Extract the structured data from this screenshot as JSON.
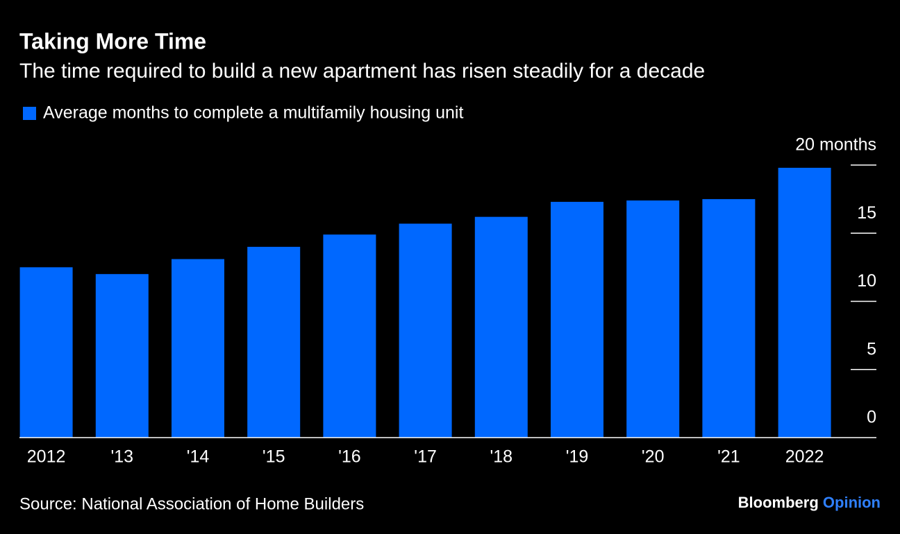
{
  "chart_data": {
    "type": "bar",
    "title": "Taking More Time",
    "subtitle": "The time required to build a new apartment has risen steadily for a decade",
    "series": [
      {
        "name": "Average months to complete a multifamily housing unit",
        "color": "#0068ff",
        "values": [
          12.5,
          12.0,
          13.1,
          14.0,
          14.9,
          15.7,
          16.2,
          17.3,
          17.4,
          17.5,
          19.8
        ]
      }
    ],
    "categories": [
      "2012",
      "'13",
      "'14",
      "'15",
      "'16",
      "'17",
      "'18",
      "'19",
      "'20",
      "'21",
      "2022"
    ],
    "ylim": [
      0,
      20
    ],
    "yticks": [
      0,
      5,
      10,
      15,
      {
        "value": 20,
        "label": "20 months"
      }
    ],
    "source": "Source: National Association of Home Builders",
    "brand": {
      "name": "Bloomberg",
      "section": "Opinion"
    }
  }
}
